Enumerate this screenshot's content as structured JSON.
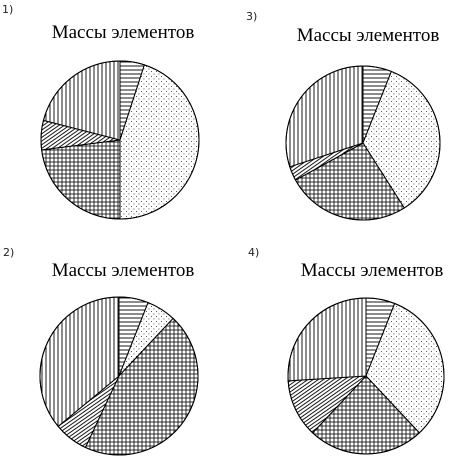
{
  "chart_data": [
    {
      "type": "pie",
      "number": "1)",
      "title": "Массы элементов",
      "slices": [
        {
          "pattern": "horizontal-lines",
          "value": 5
        },
        {
          "pattern": "dots",
          "value": 45
        },
        {
          "pattern": "grid",
          "value": 23
        },
        {
          "pattern": "diagonal-lines",
          "value": 6
        },
        {
          "pattern": "vertical-lines",
          "value": 21
        }
      ]
    },
    {
      "type": "pie",
      "number": "3)",
      "title": "Массы элементов",
      "slices": [
        {
          "pattern": "horizontal-lines",
          "value": 6
        },
        {
          "pattern": "dots",
          "value": 35
        },
        {
          "pattern": "grid",
          "value": 26
        },
        {
          "pattern": "diagonal-lines",
          "value": 3
        },
        {
          "pattern": "vertical-lines",
          "value": 30
        }
      ]
    },
    {
      "type": "pie",
      "number": "2)",
      "title": "Массы элементов",
      "slices": [
        {
          "pattern": "horizontal-lines",
          "value": 6
        },
        {
          "pattern": "dots",
          "value": 6
        },
        {
          "pattern": "grid",
          "value": 45
        },
        {
          "pattern": "diagonal-lines",
          "value": 7
        },
        {
          "pattern": "vertical-lines",
          "value": 36
        }
      ]
    },
    {
      "type": "pie",
      "number": "4)",
      "title": "Массы элементов",
      "slices": [
        {
          "pattern": "horizontal-lines",
          "value": 6
        },
        {
          "pattern": "dots",
          "value": 32
        },
        {
          "pattern": "grid",
          "value": 24
        },
        {
          "pattern": "diagonal-lines",
          "value": 12
        },
        {
          "pattern": "vertical-lines",
          "value": 26
        }
      ]
    }
  ]
}
